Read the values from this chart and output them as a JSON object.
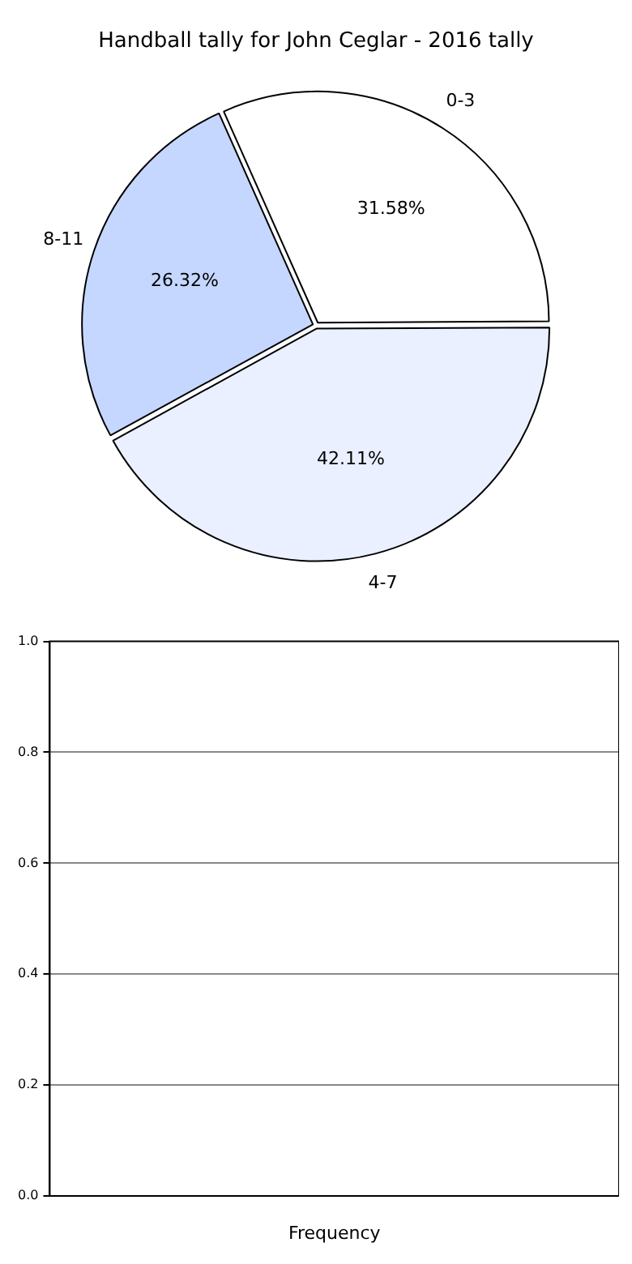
{
  "chart_data": [
    {
      "type": "pie",
      "title": "Handball tally for John Ceglar - 2016 tally",
      "categories": [
        "0-3",
        "4-7",
        "8-11"
      ],
      "values": [
        31.58,
        42.11,
        26.32
      ],
      "colors": [
        "#ffffff",
        "#eaf0ff",
        "#c5d7ff"
      ],
      "value_labels": [
        "31.58%",
        "42.11%",
        "26.32%"
      ],
      "legend": false
    },
    {
      "type": "bar",
      "categories": [
        null
      ],
      "values": [
        null
      ],
      "xlabel": "Frequency",
      "ylim": [
        0,
        1
      ],
      "yticks": [
        {
          "value": 0,
          "label": "0.0"
        },
        {
          "value": 0.2,
          "label": "0.2"
        },
        {
          "value": 0.4,
          "label": "0.4"
        },
        {
          "value": 0.6,
          "label": "0.6"
        },
        {
          "value": 0.8,
          "label": "0.8"
        },
        {
          "value": 1,
          "label": "1.0"
        }
      ],
      "grid": "y",
      "legend": false
    }
  ]
}
